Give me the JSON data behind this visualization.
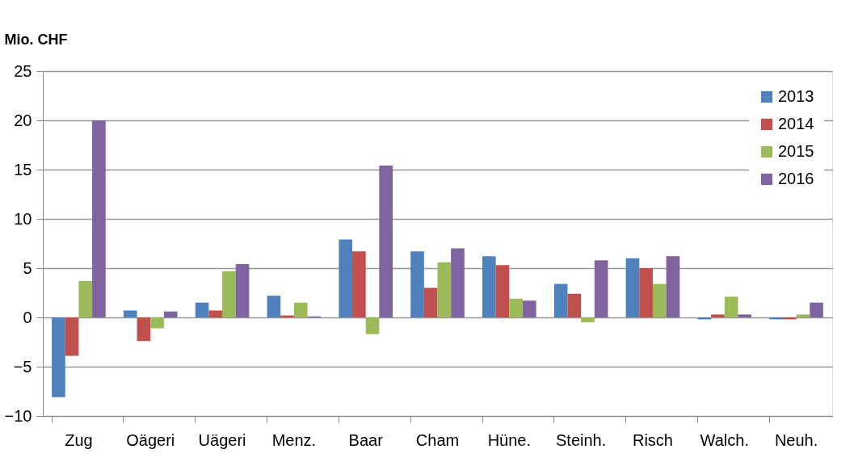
{
  "chart_data": {
    "type": "bar",
    "ylabel": "Mio. CHF",
    "categories": [
      "Zug",
      "Oägeri",
      "Uägeri",
      "Menz.",
      "Baar",
      "Cham",
      "Hüne.",
      "Steinh.",
      "Risch",
      "Walch.",
      "Neuh."
    ],
    "series": [
      {
        "name": "2013",
        "color": "#4f81bd",
        "values": [
          -8.1,
          0.7,
          1.5,
          2.2,
          7.9,
          6.7,
          6.2,
          3.4,
          6.0,
          -0.2,
          -0.2
        ]
      },
      {
        "name": "2014",
        "color": "#c0504d",
        "values": [
          -3.9,
          -2.4,
          0.7,
          0.2,
          6.7,
          3.0,
          5.3,
          2.4,
          5.0,
          0.3,
          -0.2
        ]
      },
      {
        "name": "2015",
        "color": "#9bbb59",
        "values": [
          3.7,
          -1.1,
          4.7,
          1.5,
          -1.7,
          5.6,
          1.9,
          -0.5,
          3.4,
          2.1,
          0.3
        ]
      },
      {
        "name": "2016",
        "color": "#8064a2",
        "values": [
          20.0,
          0.6,
          5.4,
          0.1,
          15.4,
          7.0,
          1.7,
          5.8,
          6.2,
          0.3,
          1.5
        ]
      }
    ],
    "ylim": [
      -10,
      25
    ],
    "yticks": [
      -10,
      -5,
      0,
      5,
      10,
      15,
      20,
      25
    ],
    "grid": "y",
    "legend": "top right"
  }
}
